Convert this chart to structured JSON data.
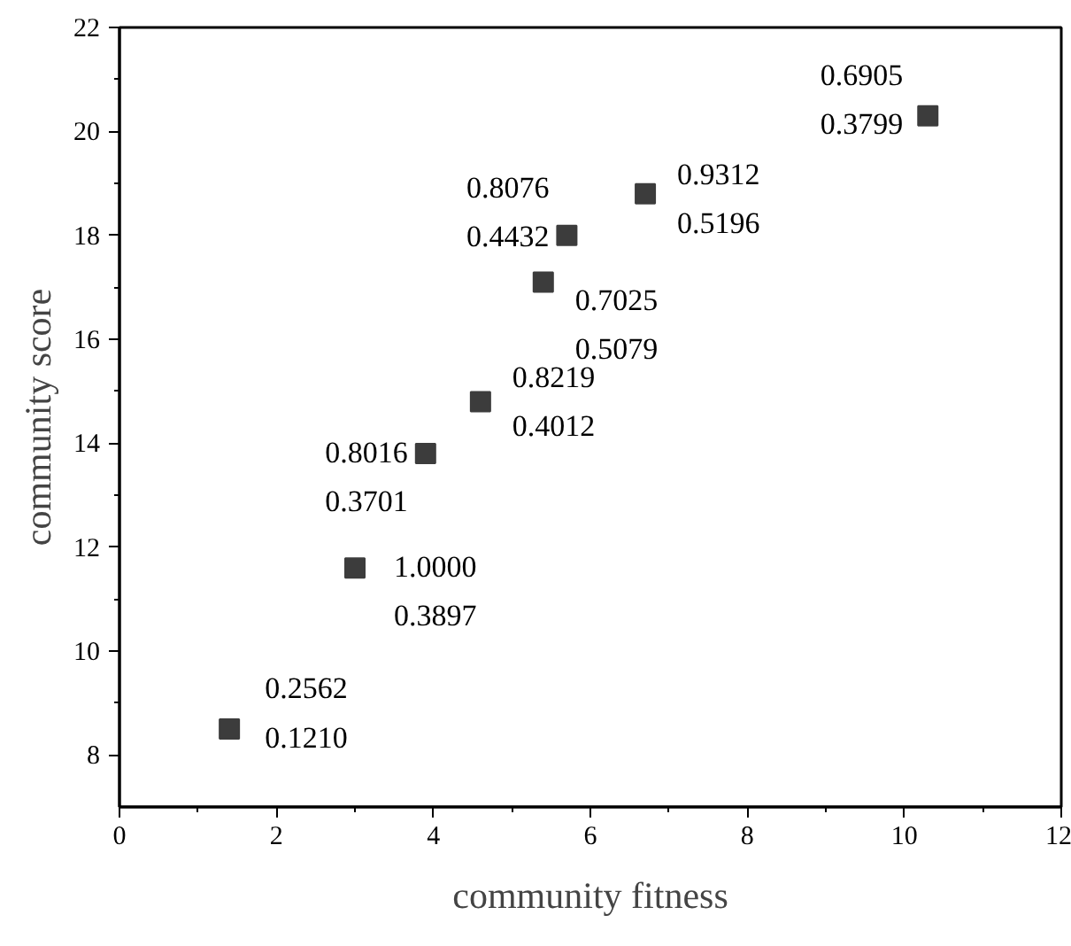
{
  "chart_data": {
    "type": "scatter",
    "xlabel": "community fitness",
    "ylabel": "community score",
    "x": [
      1.4,
      3.0,
      3.9,
      4.6,
      5.4,
      5.7,
      6.7,
      10.3
    ],
    "values": [
      8.5,
      11.6,
      13.8,
      14.8,
      17.1,
      18.0,
      18.8,
      20.3
    ],
    "color": "#3c3c3c",
    "marker": "square",
    "grid": false,
    "xlim": [
      0,
      12
    ],
    "ylim": [
      7,
      22
    ],
    "xticks": [
      0,
      2,
      4,
      6,
      8,
      10,
      12
    ],
    "yticks": [
      8,
      10,
      12,
      14,
      16,
      18,
      20,
      22
    ],
    "annotations": [
      {
        "text": "0.2562\n0.1210",
        "x": 1.4,
        "y": 8.5
      },
      {
        "text": "1.0000\n0.3897",
        "x": 3.0,
        "y": 11.6
      },
      {
        "text": "0.8016\n0.3701",
        "x": 3.9,
        "y": 13.8
      },
      {
        "text": "0.8219\n0.4012",
        "x": 4.6,
        "y": 14.8
      },
      {
        "text": "0.7025\n0.5079",
        "x": 5.4,
        "y": 17.1
      },
      {
        "text": "0.8076\n0.4432",
        "x": 5.7,
        "y": 18.0
      },
      {
        "text": "0.9312\n0.5196",
        "x": 6.7,
        "y": 18.8
      },
      {
        "text": "0.6905\n0.3799",
        "x": 10.3,
        "y": 20.3
      }
    ]
  }
}
